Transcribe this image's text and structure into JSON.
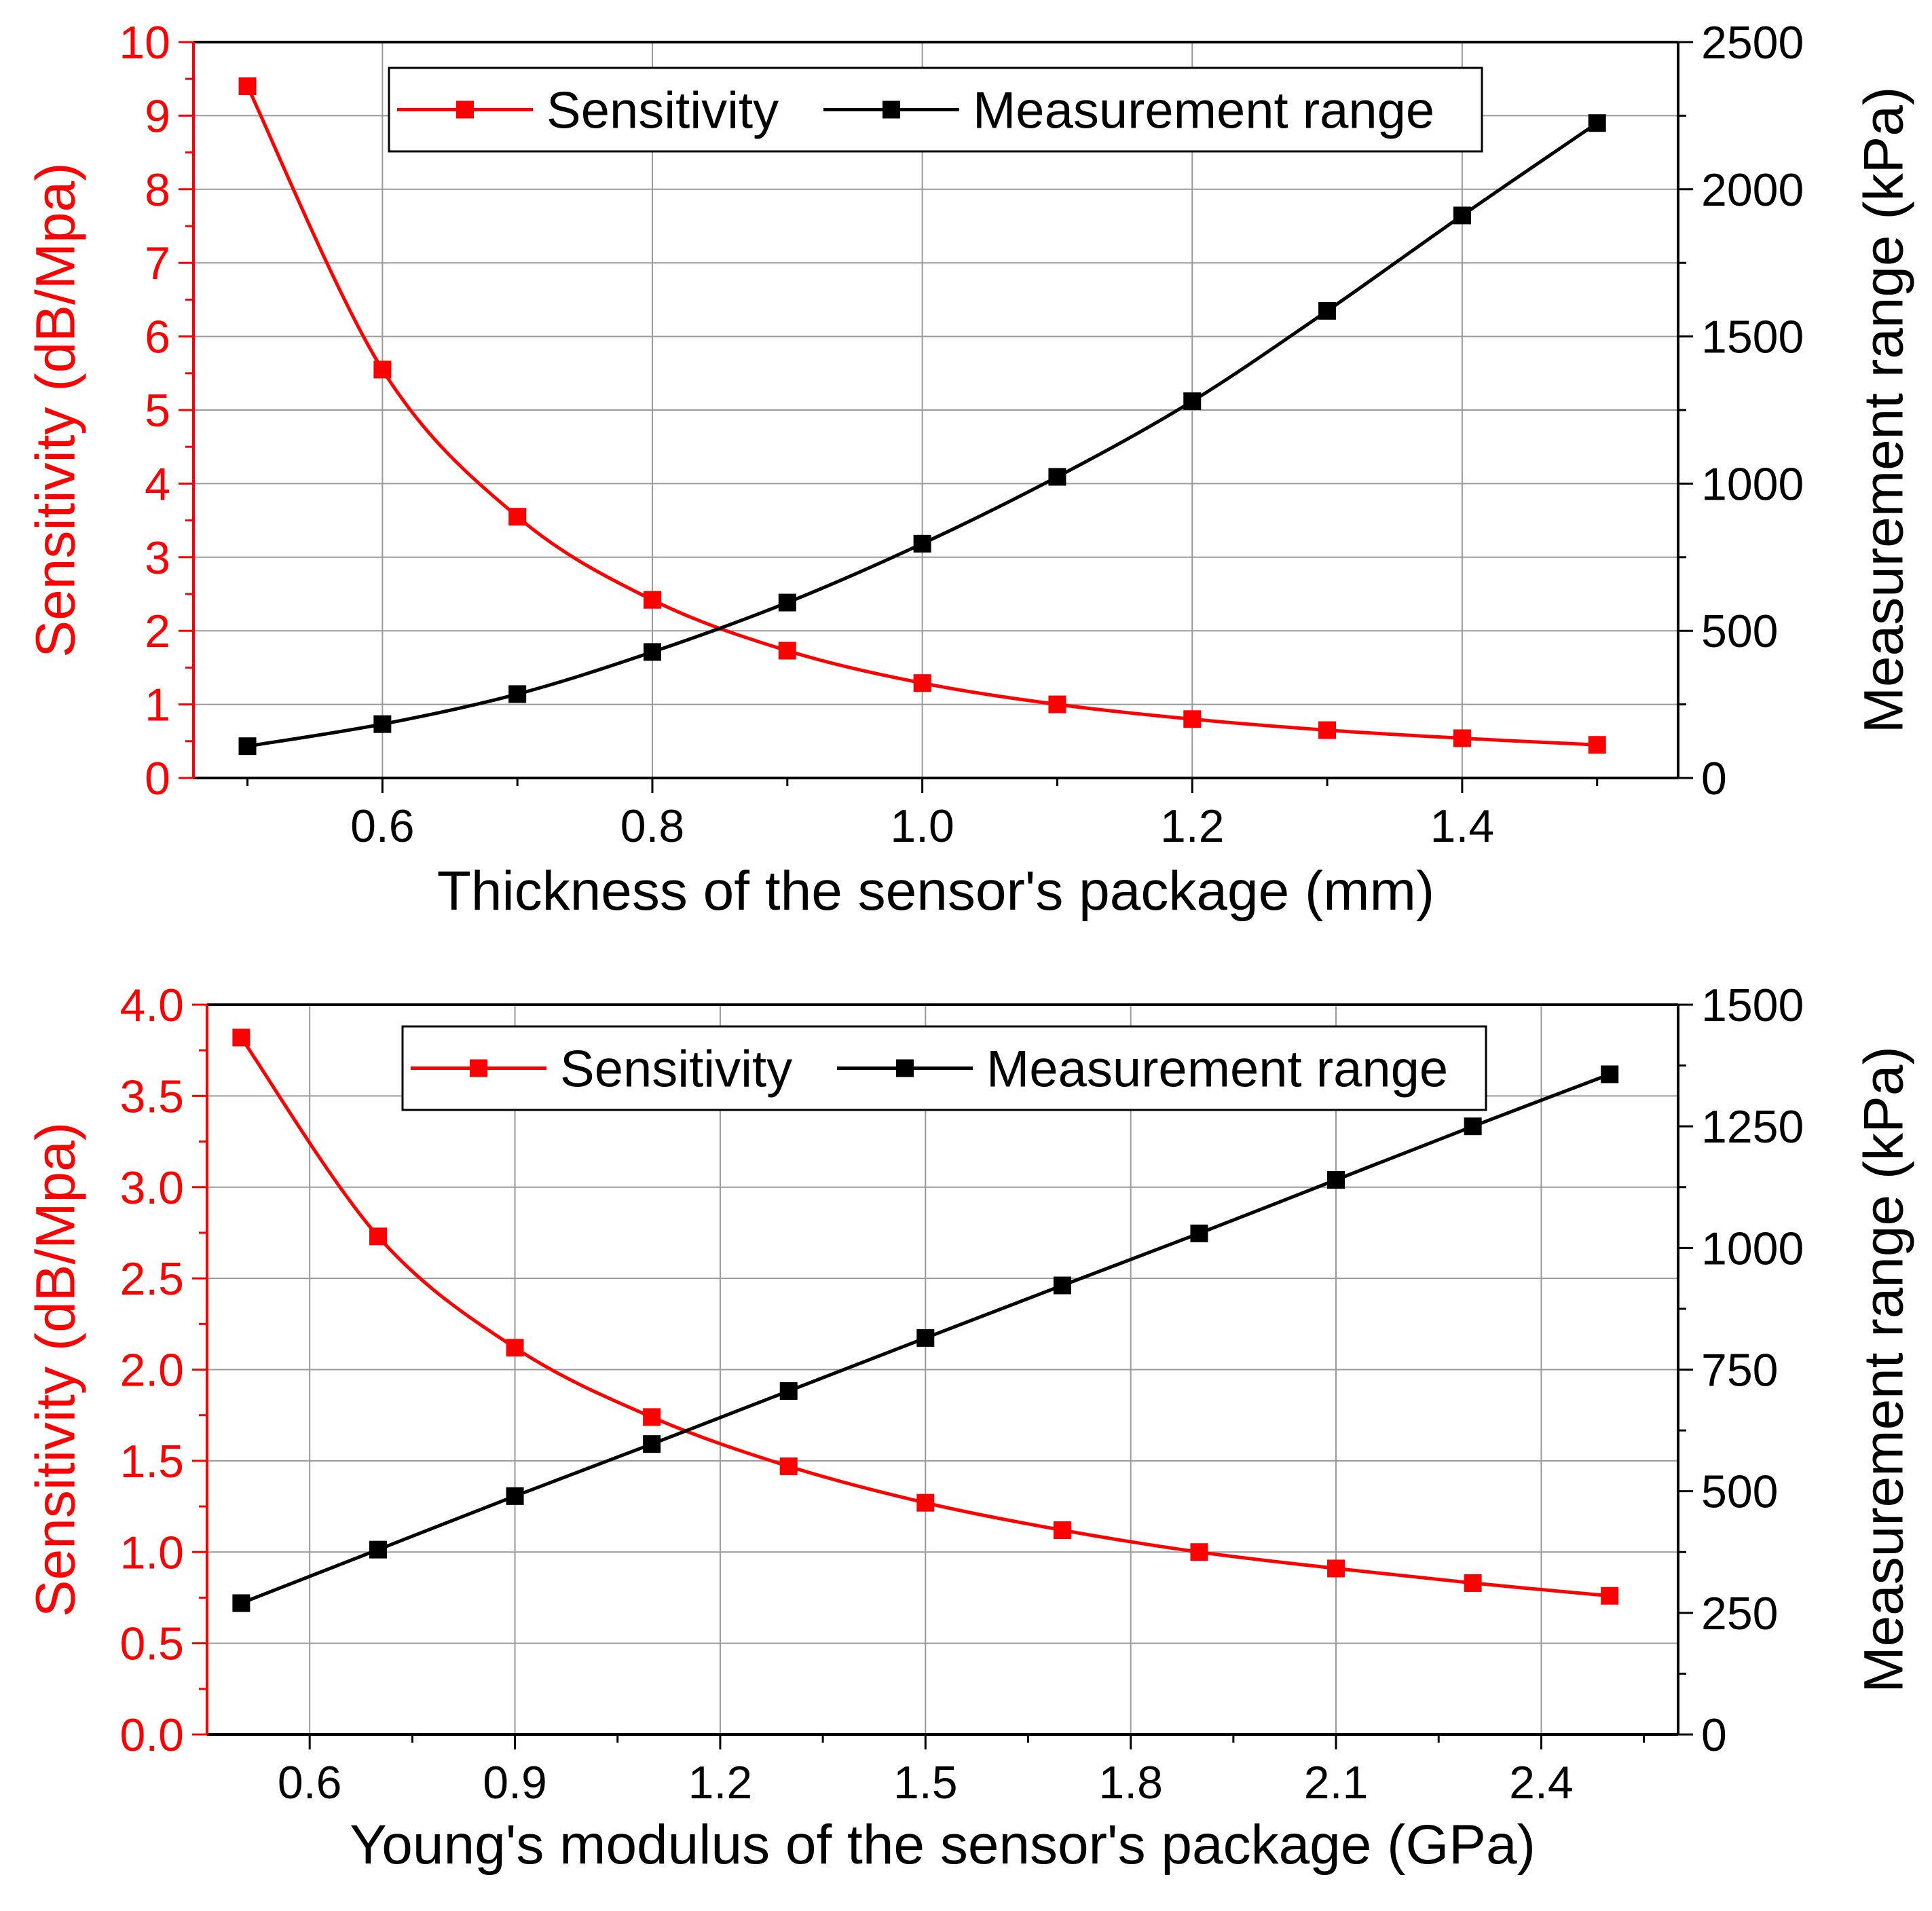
{
  "colors": {
    "sensitivity": "#ff0000",
    "measurement_range": "#000000",
    "grid": "#9a9a9a",
    "axis": "#000000",
    "background": "#ffffff"
  },
  "chart_data": [
    {
      "type": "line",
      "xlabel": "Thickness of the sensor's package (mm)",
      "ylabel_left": "Sensitivity (dB/Mpa)",
      "ylabel_right": "Measurement range (kPa)",
      "xlim": [
        0.46,
        1.56
      ],
      "ylim_left": [
        0,
        10
      ],
      "ylim_right": [
        0,
        2500
      ],
      "xticks": [
        0.6,
        0.8,
        1.0,
        1.2,
        1.4
      ],
      "xtick_labels": [
        "0.6",
        "0.8",
        "1.0",
        "1.2",
        "1.4"
      ],
      "yticks_left": [
        0,
        1,
        2,
        3,
        4,
        5,
        6,
        7,
        8,
        9,
        10
      ],
      "ytick_labels_left": [
        "0",
        "1",
        "2",
        "3",
        "4",
        "5",
        "6",
        "7",
        "8",
        "9",
        "10"
      ],
      "yticks_right": [
        0,
        500,
        1000,
        1500,
        2000,
        2500
      ],
      "ytick_labels_right": [
        "0",
        "500",
        "1000",
        "1500",
        "2000",
        "2500"
      ],
      "grid": true,
      "legend_position": "top-center",
      "x": [
        0.5,
        0.6,
        0.7,
        0.8,
        0.9,
        1.0,
        1.1,
        1.2,
        1.3,
        1.4,
        1.5
      ],
      "series": [
        {
          "name": "Sensitivity",
          "axis": "left",
          "color": "#ff0000",
          "marker": "square",
          "values": [
            9.4,
            5.55,
            3.55,
            2.42,
            1.73,
            1.29,
            1.0,
            0.8,
            0.65,
            0.54,
            0.45
          ]
        },
        {
          "name": "Measurement range",
          "axis": "right",
          "color": "#000000",
          "marker": "square",
          "values": [
            108,
            183,
            285,
            428,
            596,
            796,
            1023,
            1280,
            1587,
            1911,
            2225
          ]
        }
      ]
    },
    {
      "type": "line",
      "xlabel": "Young's modulus of the sensor's package (GPa)",
      "ylabel_left": "Sensitivity (dB/Mpa)",
      "ylabel_right": "Measurement range (kPa)",
      "xlim": [
        0.45,
        2.6
      ],
      "ylim_left": [
        0,
        4
      ],
      "ylim_right": [
        0,
        1500
      ],
      "xticks": [
        0.6,
        0.9,
        1.2,
        1.5,
        1.8,
        2.1,
        2.4
      ],
      "xtick_labels": [
        "0.6",
        "0.9",
        "1.2",
        "1.5",
        "1.8",
        "2.1",
        "2.4"
      ],
      "yticks_left": [
        0,
        0.5,
        1,
        1.5,
        2,
        2.5,
        3,
        3.5,
        4
      ],
      "ytick_labels_left": [
        "0.0",
        "0.5",
        "1.0",
        "1.5",
        "2.0",
        "2.5",
        "3.0",
        "3.5",
        "4.0"
      ],
      "yticks_right": [
        0,
        250,
        500,
        750,
        1000,
        1250,
        1500
      ],
      "ytick_labels_right": [
        "0",
        "250",
        "500",
        "750",
        "1000",
        "1250",
        "1500"
      ],
      "grid": true,
      "legend_position": "top-center",
      "x": [
        0.5,
        0.7,
        0.9,
        1.1,
        1.3,
        1.5,
        1.7,
        1.9,
        2.1,
        2.3,
        2.5
      ],
      "series": [
        {
          "name": "Sensitivity",
          "axis": "left",
          "color": "#ff0000",
          "marker": "square",
          "values": [
            3.82,
            2.73,
            2.12,
            1.74,
            1.47,
            1.27,
            1.12,
            1.0,
            0.91,
            0.83,
            0.76
          ]
        },
        {
          "name": "Measurement range",
          "axis": "right",
          "color": "#000000",
          "marker": "square",
          "values": [
            270,
            380,
            490,
            597,
            706,
            815,
            923,
            1030,
            1140,
            1250,
            1357
          ]
        }
      ]
    }
  ]
}
